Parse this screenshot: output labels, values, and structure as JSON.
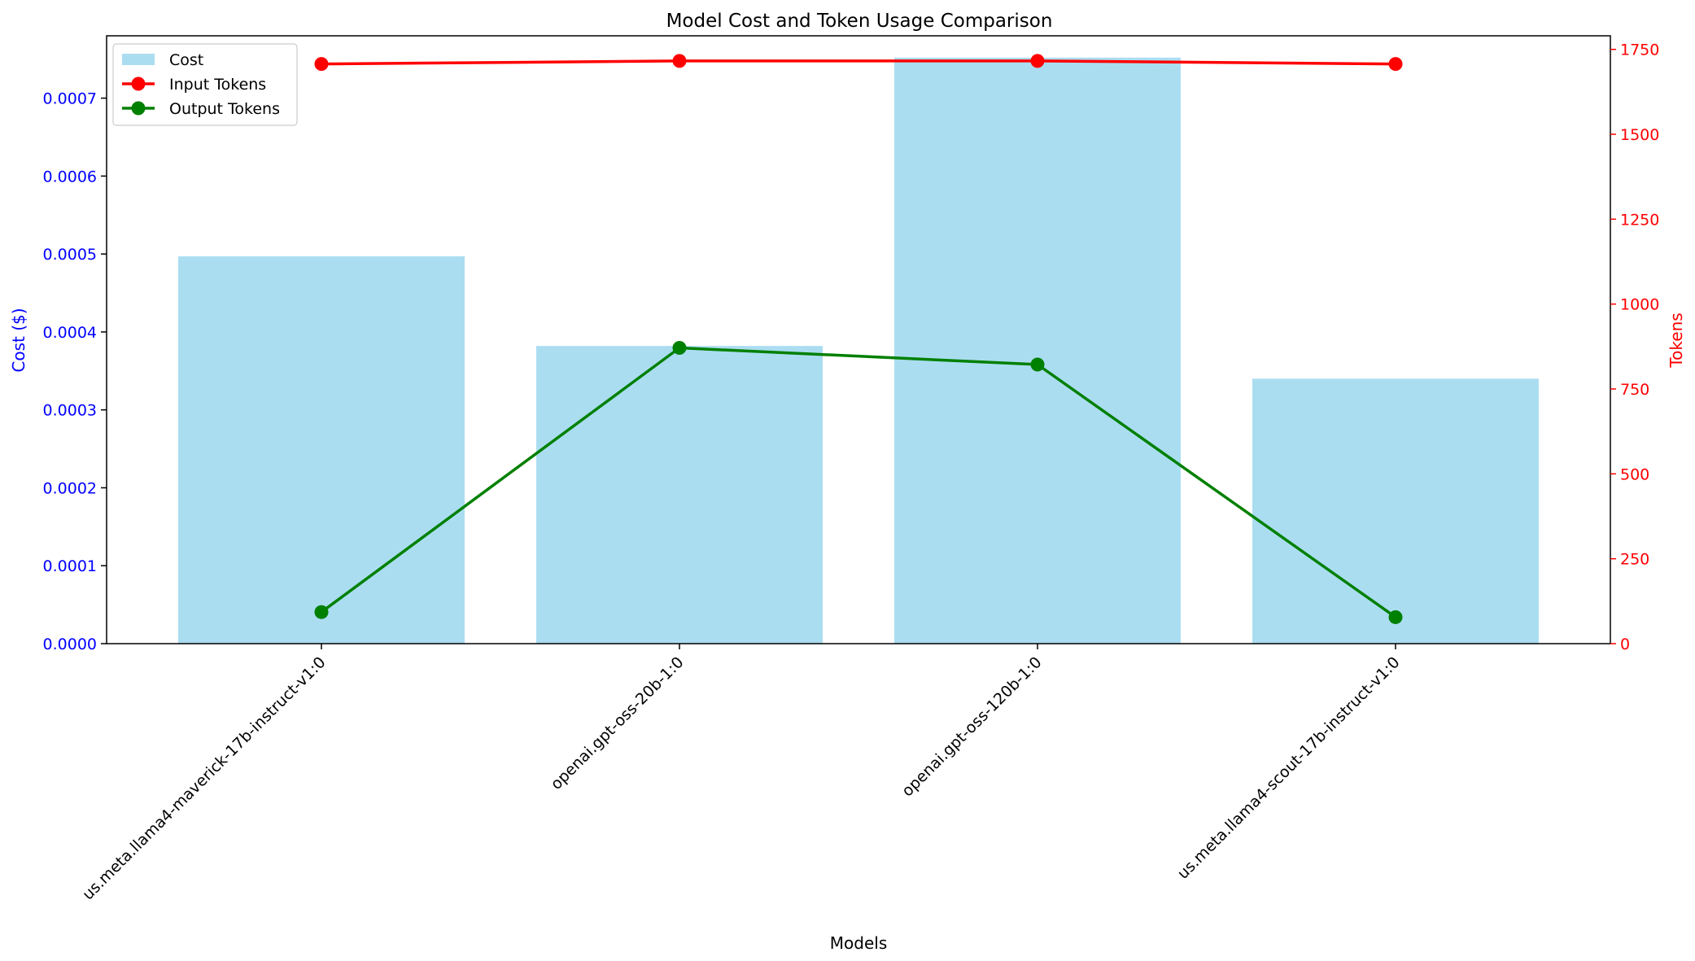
{
  "chart_data": {
    "type": "bar",
    "title": "Model Cost and Token Usage Comparison",
    "xlabel": "Models",
    "ylabel_left": "Cost ($)",
    "ylabel_right": "Tokens",
    "categories": [
      "us.meta.llama4-maverick-17b-instruct-v1:0",
      "openai.gpt-oss-20b-1:0",
      "openai.gpt-oss-120b-1:0",
      "us.meta.llama4-scout-17b-instruct-v1:0"
    ],
    "bar_series": {
      "name": "Cost",
      "axis": "left",
      "values": [
        0.000497,
        0.000382,
        0.000752,
        0.00034
      ],
      "color": "#87ceeb"
    },
    "line_series": [
      {
        "name": "Input Tokens",
        "axis": "right",
        "values": [
          1707,
          1716,
          1716,
          1707
        ],
        "color": "#ff0000"
      },
      {
        "name": "Output Tokens",
        "axis": "right",
        "values": [
          93,
          871,
          822,
          78
        ],
        "color": "#008000"
      }
    ],
    "ylim_left": [
      0,
      0.00078
    ],
    "ylim_right": [
      0,
      1790
    ],
    "yticks_left": [
      "0.0000",
      "0.0001",
      "0.0002",
      "0.0003",
      "0.0004",
      "0.0005",
      "0.0006",
      "0.0007"
    ],
    "yticks_left_values": [
      0,
      0.0001,
      0.0002,
      0.0003,
      0.0004,
      0.0005,
      0.0006,
      0.0007
    ],
    "yticks_right": [
      "0",
      "250",
      "500",
      "750",
      "1000",
      "1250",
      "1500",
      "1750"
    ],
    "yticks_right_values": [
      0,
      250,
      500,
      750,
      1000,
      1250,
      1500,
      1750
    ],
    "left_axis_color": "#0000ff",
    "right_axis_color": "#ff0000",
    "legend": [
      "Cost",
      "Input Tokens",
      "Output Tokens"
    ],
    "legend_position": "top-left",
    "grid": false
  }
}
